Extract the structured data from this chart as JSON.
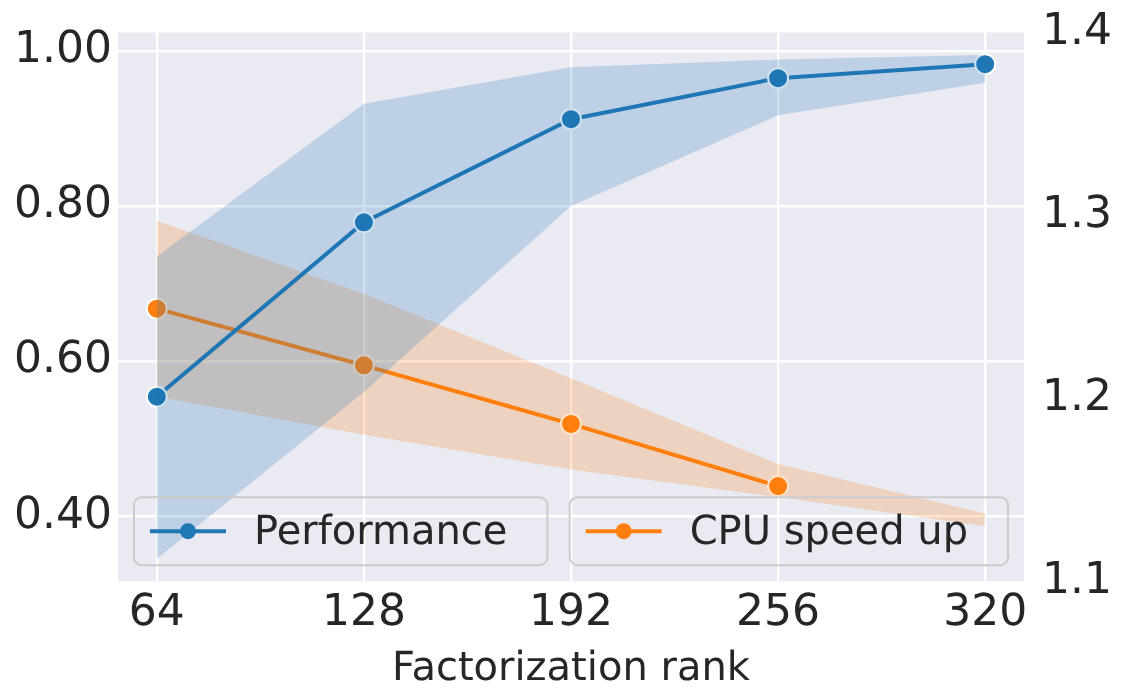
{
  "chart_data": {
    "type": "line",
    "xlabel": "Factorization rank",
    "x": [
      64,
      128,
      192,
      256,
      320
    ],
    "xlim": [
      52,
      332
    ],
    "xticks": [
      64,
      128,
      192,
      256,
      320
    ],
    "ylim": [
      0.316,
      1.024
    ],
    "yticks": [
      {
        "value": 0.4,
        "label": "0.40"
      },
      {
        "value": 0.6,
        "label": "0.60"
      },
      {
        "value": 0.8,
        "label": "0.80"
      },
      {
        "value": 1.0,
        "label": "1.00"
      }
    ],
    "y2lim": [
      1.1,
      1.4
    ],
    "y2ticks": [
      1.1,
      1.2,
      1.3,
      1.4
    ],
    "series": [
      {
        "name": "Performance",
        "color": "#1f77b4",
        "values": [
          0.554,
          0.779,
          0.912,
          0.965,
          0.983
        ],
        "lower": [
          0.345,
          0.56,
          0.8,
          0.917,
          0.959
        ],
        "upper": [
          0.735,
          0.932,
          0.979,
          0.989,
          0.995
        ]
      },
      {
        "name": "CPU speed up",
        "color": "#ff7f0e",
        "axis": "y2",
        "values": [
          1.249,
          1.218,
          1.186,
          1.152,
          null
        ],
        "lower": [
          1.201,
          1.18,
          1.161,
          1.146,
          1.13
        ],
        "upper": [
          1.297,
          1.257,
          1.211,
          1.164,
          1.137
        ]
      }
    ],
    "grid": true,
    "legend": "bottom",
    "marker": "circle",
    "line_style": "solid"
  }
}
